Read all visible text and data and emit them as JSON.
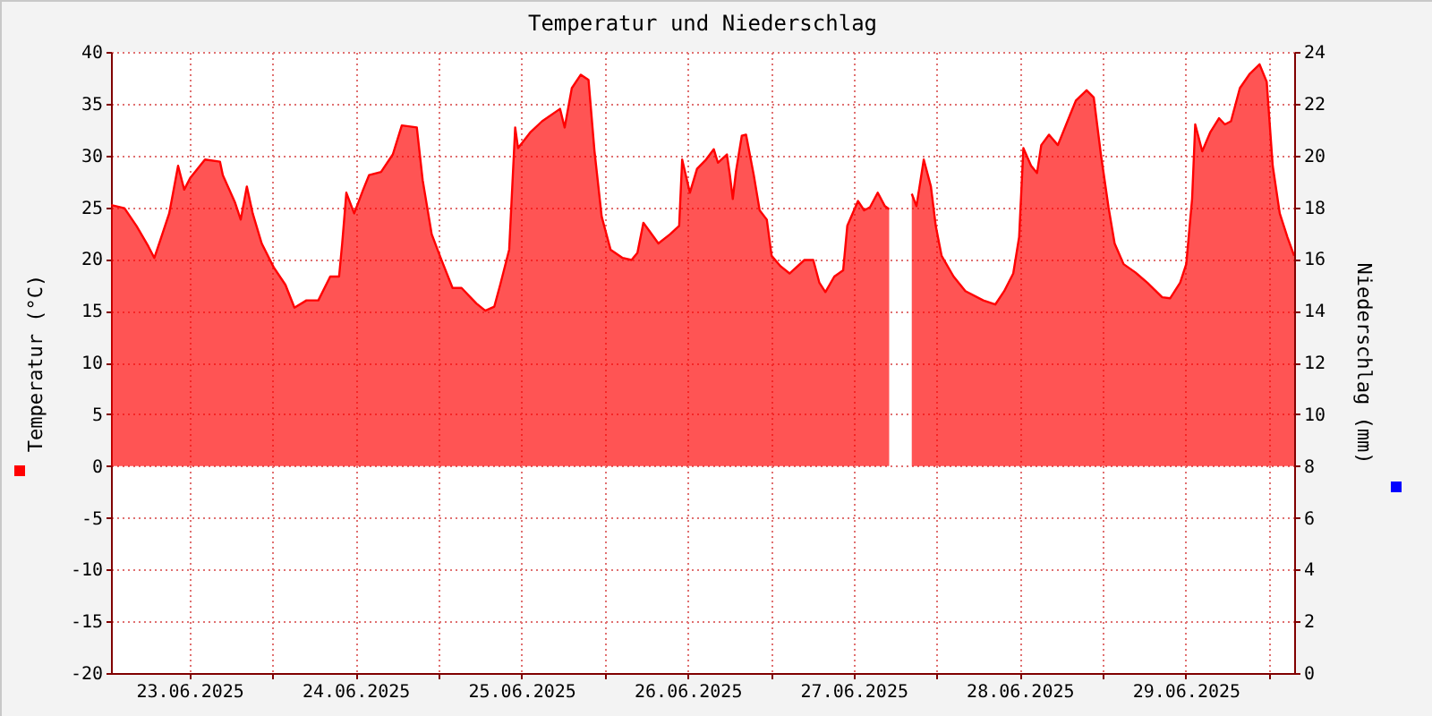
{
  "chart_data": {
    "type": "area",
    "title": "Temperatur und Niederschlag",
    "ylabel": "Temperatur (°C)",
    "y2label": "Niederschlag (mm)",
    "xlim": [
      "2025-06-23T00:40",
      "2025-06-30T03:40"
    ],
    "xticks": [
      {
        "value": "2025-06-23T12:00",
        "label": "23.06.2025"
      },
      {
        "value": "2025-06-24T12:00",
        "label": "24.06.2025"
      },
      {
        "value": "2025-06-25T12:00",
        "label": "25.06.2025"
      },
      {
        "value": "2025-06-26T12:00",
        "label": "26.06.2025"
      },
      {
        "value": "2025-06-27T12:00",
        "label": "27.06.2025"
      },
      {
        "value": "2025-06-28T12:00",
        "label": "28.06.2025"
      },
      {
        "value": "2025-06-29T12:00",
        "label": "29.06.2025"
      },
      {
        "value": "2025-06-24T00:00",
        "label": null
      },
      {
        "value": "2025-06-25T00:00",
        "label": null
      },
      {
        "value": "2025-06-26T00:00",
        "label": null
      },
      {
        "value": "2025-06-27T00:00",
        "label": null
      },
      {
        "value": "2025-06-28T00:00",
        "label": null
      },
      {
        "value": "2025-06-29T00:00",
        "label": null
      },
      {
        "value": "2025-06-30T00:00",
        "label": null
      }
    ],
    "ylim": [
      -20,
      40
    ],
    "yticks": [
      -20,
      -15,
      -10,
      -5,
      0,
      5,
      10,
      15,
      20,
      25,
      30,
      35,
      40
    ],
    "y2lim": [
      0,
      24
    ],
    "y2ticks": [
      0,
      2,
      4,
      6,
      8,
      10,
      12,
      14,
      16,
      18,
      20,
      22,
      24
    ],
    "grid": true,
    "x": [
      "2025-06-23T00:43",
      "2025-06-23T02:37",
      "2025-06-23T04:21",
      "2025-06-23T06:05",
      "2025-06-23T06:56",
      "2025-06-23T07:47",
      "2025-06-23T09:05",
      "2025-06-23T10:22",
      "2025-06-23T11:15",
      "2025-06-23T12:06",
      "2025-06-23T14:15",
      "2025-06-23T16:25",
      "2025-06-23T16:50",
      "2025-06-23T18:34",
      "2025-06-23T19:25",
      "2025-06-23T20:18",
      "2025-06-23T21:09",
      "2025-06-23T22:27",
      "2025-06-24T00:11",
      "2025-06-24T01:53",
      "2025-06-24T03:11",
      "2025-06-24T04:55",
      "2025-06-24T06:38",
      "2025-06-24T08:21",
      "2025-06-24T09:38",
      "2025-06-24T10:05",
      "2025-06-24T10:41",
      "2025-06-24T11:49",
      "2025-06-24T13:07",
      "2025-06-24T13:58",
      "2025-06-24T15:42",
      "2025-06-24T17:24",
      "2025-06-24T18:42",
      "2025-06-24T20:52",
      "2025-06-24T21:43",
      "2025-06-24T23:01",
      "2025-06-25T00:19",
      "2025-06-25T02:02",
      "2025-06-25T03:20",
      "2025-06-25T05:29",
      "2025-06-25T06:46",
      "2025-06-25T08:04",
      "2025-06-25T08:55",
      "2025-06-25T10:13",
      "2025-06-25T11:05",
      "2025-06-25T11:30",
      "2025-06-25T13:14",
      "2025-06-25T14:58",
      "2025-06-25T17:34",
      "2025-06-25T18:14",
      "2025-06-25T19:16",
      "2025-06-25T20:34",
      "2025-06-25T21:41",
      "2025-06-25T22:33",
      "2025-06-25T23:35",
      "2025-06-26T00:52",
      "2025-06-26T02:37",
      "2025-06-26T03:54",
      "2025-06-26T04:45",
      "2025-06-26T05:37",
      "2025-06-26T07:47",
      "2025-06-26T09:29",
      "2025-06-26T10:47",
      "2025-06-26T11:13",
      "2025-06-26T12:20",
      "2025-06-26T13:22",
      "2025-06-26T14:40",
      "2025-06-26T15:47",
      "2025-06-26T16:23",
      "2025-06-26T17:41",
      "2025-06-26T18:07",
      "2025-06-26T18:32",
      "2025-06-26T18:59",
      "2025-06-26T19:50",
      "2025-06-26T20:27",
      "2025-06-26T21:34",
      "2025-06-26T22:25",
      "2025-06-26T23:27",
      "2025-06-27T00:09",
      "2025-06-27T01:26",
      "2025-06-27T02:44",
      "2025-06-27T04:53",
      "2025-06-27T06:10",
      "2025-06-27T07:03",
      "2025-06-27T07:55",
      "2025-06-27T09:12",
      "2025-06-27T10:29",
      "2025-06-27T11:05",
      "2025-06-27T12:38",
      "2025-06-27T13:31",
      "2025-06-27T14:22",
      "2025-06-27T15:29",
      "2025-06-27T16:31",
      "2025-06-27T17:08",
      "2025-06-27T18:46",
      "2025-06-27T20:24",
      "2025-06-27T21:05",
      "2025-06-27T22:08",
      "2025-06-27T23:10",
      "2025-06-27T23:52",
      "2025-06-28T00:43",
      "2025-06-28T02:27",
      "2025-06-28T04:09",
      "2025-06-28T06:44",
      "2025-06-28T08:28",
      "2025-06-28T09:46",
      "2025-06-28T11:04",
      "2025-06-28T11:55",
      "2025-06-28T12:32",
      "2025-06-28T13:39",
      "2025-06-28T14:30",
      "2025-06-28T15:07",
      "2025-06-28T16:14",
      "2025-06-28T17:31",
      "2025-06-28T19:16",
      "2025-06-28T20:07",
      "2025-06-28T21:40",
      "2025-06-28T22:42",
      "2025-06-28T23:44",
      "2025-06-29T00:50",
      "2025-06-29T01:43",
      "2025-06-29T03:01",
      "2025-06-29T04:43",
      "2025-06-29T06:27",
      "2025-06-29T08:36",
      "2025-06-29T09:44",
      "2025-06-29T11:11",
      "2025-06-29T12:04",
      "2025-06-29T12:55",
      "2025-06-29T13:22",
      "2025-06-29T14:23",
      "2025-06-29T15:31",
      "2025-06-29T16:48",
      "2025-06-29T17:39",
      "2025-06-29T18:32",
      "2025-06-29T19:49",
      "2025-06-29T21:16",
      "2025-06-29T22:40",
      "2025-06-29T23:42",
      "2025-06-30T00:34",
      "2025-06-30T01:35",
      "2025-06-30T02:42",
      "2025-06-30T03:40"
    ],
    "series": [
      {
        "color": "#ff0000",
        "values": [
          25.2,
          24.9,
          23.2,
          21.2,
          20.1,
          21.8,
          24.4,
          29.0,
          26.7,
          27.8,
          29.6,
          29.4,
          28.1,
          25.5,
          23.8,
          27.0,
          24.4,
          21.5,
          19.2,
          17.5,
          15.3,
          16.0,
          16.0,
          18.3,
          18.3,
          21.5,
          26.4,
          24.4,
          26.7,
          28.1,
          28.4,
          30.1,
          32.9,
          32.7,
          27.6,
          22.4,
          20.1,
          17.2,
          17.2,
          15.7,
          15.0,
          15.4,
          17.5,
          20.9,
          32.7,
          30.7,
          32.2,
          33.3,
          34.5,
          32.7,
          36.5,
          37.8,
          37.3,
          30.4,
          24.1,
          20.9,
          20.1,
          19.9,
          20.6,
          23.5,
          21.5,
          22.4,
          23.2,
          29.6,
          26.4,
          28.7,
          29.6,
          30.6,
          29.3,
          30.1,
          28.1,
          25.8,
          28.4,
          31.9,
          32.0,
          28.1,
          24.7,
          23.8,
          20.3,
          19.3,
          18.6,
          19.9,
          19.9,
          17.7,
          16.8,
          18.3,
          18.9,
          23.2,
          25.6,
          24.7,
          25.0,
          26.4,
          25.1,
          24.8,
          null,
          26.3,
          25.1,
          29.6,
          27.0,
          23.2,
          20.3,
          18.3,
          16.9,
          16.0,
          15.6,
          16.9,
          18.6,
          22.1,
          30.7,
          29.0,
          28.3,
          31.0,
          32.0,
          31.0,
          33.9,
          35.3,
          36.3,
          35.6,
          30.1,
          25.0,
          21.5,
          19.5,
          18.7,
          17.7,
          16.3,
          16.2,
          17.7,
          19.5,
          25.8,
          33.0,
          30.4,
          32.2,
          33.6,
          33.0,
          33.3,
          36.5,
          37.9,
          38.8,
          37.1,
          29.0,
          24.4,
          22.1,
          20.3
        ]
      }
    ]
  }
}
